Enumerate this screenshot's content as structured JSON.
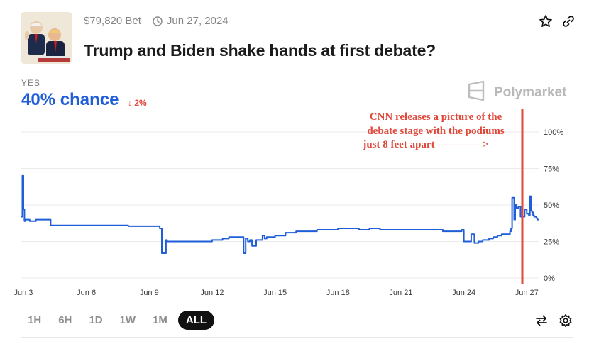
{
  "market": {
    "volume": "$79,820 Bet",
    "date": "Jun 27, 2024",
    "title": "Trump and Biden shake hands at first debate?"
  },
  "outcome": {
    "label": "YES",
    "chance": "40% chance",
    "change": "↓ 2%"
  },
  "brand": "Polymarket",
  "annotation": {
    "line1": "CNN releases a picture of the",
    "line2": "debate stage with the podiums",
    "line3": "just 8 feet apart ———— >"
  },
  "ranges": [
    "1H",
    "6H",
    "1D",
    "1W",
    "1M",
    "ALL"
  ],
  "active_range": "ALL",
  "colors": {
    "accent": "#1f5ed8",
    "annotation": "#e0483a",
    "grid": "#ebebeb"
  },
  "icons": [
    "clock-icon",
    "star-icon",
    "link-icon",
    "polymarket-logo-icon",
    "swap-icon",
    "gear-icon"
  ],
  "chart_data": {
    "type": "line",
    "x_ticks": [
      "Jun 3",
      "Jun 6",
      "Jun 9",
      "Jun 12",
      "Jun 15",
      "Jun 18",
      "Jun 21",
      "Jun 24",
      "Jun 27"
    ],
    "y_ticks": [
      "100%",
      "75%",
      "50%",
      "25%",
      "0%"
    ],
    "ylim": [
      0,
      100
    ],
    "xlim": [
      2.9,
      27.6
    ],
    "grid": true,
    "series": [
      {
        "x": [
          2.9,
          2.95,
          3.0,
          3.05,
          3.1,
          3.3,
          3.6,
          4.2,
          4.3,
          5.0,
          6.0,
          7.0,
          8.0,
          8.8,
          9.4,
          9.5,
          9.6,
          9.7,
          9.8,
          9.85,
          9.9,
          10.2,
          10.5,
          11.0,
          11.5,
          12.0,
          12.5,
          12.7,
          12.8,
          13.3,
          13.5,
          13.6,
          13.7,
          13.8,
          13.9,
          14.1,
          14.4,
          14.5,
          14.6,
          15.0,
          15.5,
          16.0,
          16.5,
          17.0,
          17.5,
          18.0,
          18.5,
          19.0,
          19.5,
          20.0,
          20.5,
          21.0,
          21.5,
          22.0,
          22.5,
          23.0,
          23.5,
          23.9,
          24.0,
          24.1,
          24.3,
          24.35,
          24.5,
          24.7,
          24.9,
          25.0,
          25.2,
          25.4,
          25.6,
          25.8,
          26.0,
          26.2,
          26.25,
          26.3,
          26.4,
          26.45,
          26.5,
          26.6,
          26.7,
          26.9,
          27.0,
          27.1,
          27.15,
          27.2,
          27.25,
          27.3,
          27.35,
          27.45,
          27.5,
          27.6
        ],
        "values": [
          42,
          70,
          47,
          39,
          40,
          39,
          40,
          40,
          36,
          36,
          36,
          36,
          35.5,
          35.5,
          35.5,
          34,
          17,
          17,
          26,
          25,
          25,
          25,
          25,
          25,
          25,
          26,
          27,
          27,
          28,
          28,
          17,
          27,
          25,
          26,
          22,
          26,
          29,
          27,
          28,
          29,
          31,
          32,
          32,
          33,
          33,
          34,
          34,
          33,
          34,
          33,
          33,
          33,
          33,
          33,
          33,
          32,
          32,
          33,
          25,
          25,
          25,
          30,
          24,
          25,
          26,
          26,
          27,
          28,
          29,
          30,
          30,
          32,
          34,
          55,
          40,
          50,
          48,
          49,
          42,
          47,
          44,
          43,
          56,
          46,
          45,
          43,
          42,
          41,
          40,
          40
        ]
      }
    ]
  }
}
